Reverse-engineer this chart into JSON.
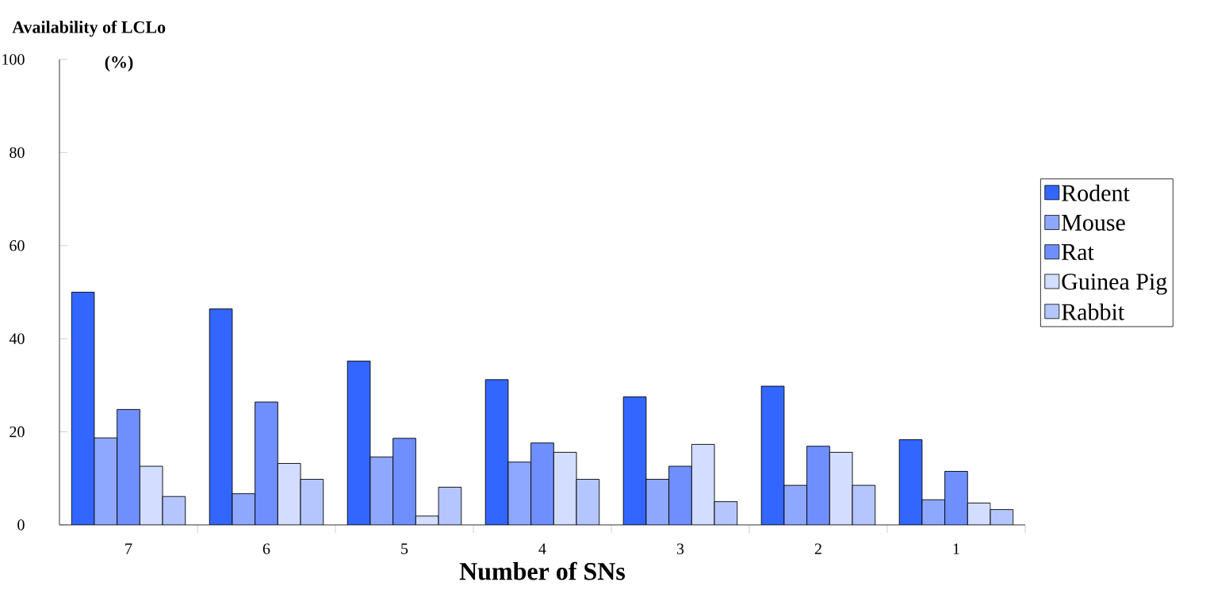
{
  "chart_data": {
    "type": "bar",
    "title": "Availability of LCLo",
    "ylabel": "(%)",
    "xlabel": "Number of SNs",
    "categories": [
      "7",
      "6",
      "5",
      "4",
      "3",
      "2",
      "1"
    ],
    "series": [
      {
        "name": "Rodent",
        "color": "#3366ff",
        "values": [
          50.0,
          46.4,
          35.2,
          31.2,
          27.5,
          29.8,
          18.3
        ]
      },
      {
        "name": "Mouse",
        "color": "#8fa8ff",
        "values": [
          18.7,
          6.7,
          14.6,
          13.5,
          9.8,
          8.5,
          5.4
        ]
      },
      {
        "name": "Rat",
        "color": "#6f8fff",
        "values": [
          24.8,
          26.4,
          18.6,
          17.6,
          12.6,
          16.9,
          11.5
        ]
      },
      {
        "name": "Guinea Pig",
        "color": "#d2ddff",
        "values": [
          12.6,
          13.2,
          1.9,
          15.6,
          17.3,
          15.6,
          4.7
        ]
      },
      {
        "name": "Rabbit",
        "color": "#b5c6ff",
        "values": [
          6.1,
          9.8,
          8.1,
          9.8,
          5.0,
          8.5,
          3.3
        ]
      }
    ],
    "ylim": [
      0,
      100
    ],
    "yticks": [
      0,
      20,
      40,
      60,
      80,
      100
    ],
    "legend": "right"
  }
}
